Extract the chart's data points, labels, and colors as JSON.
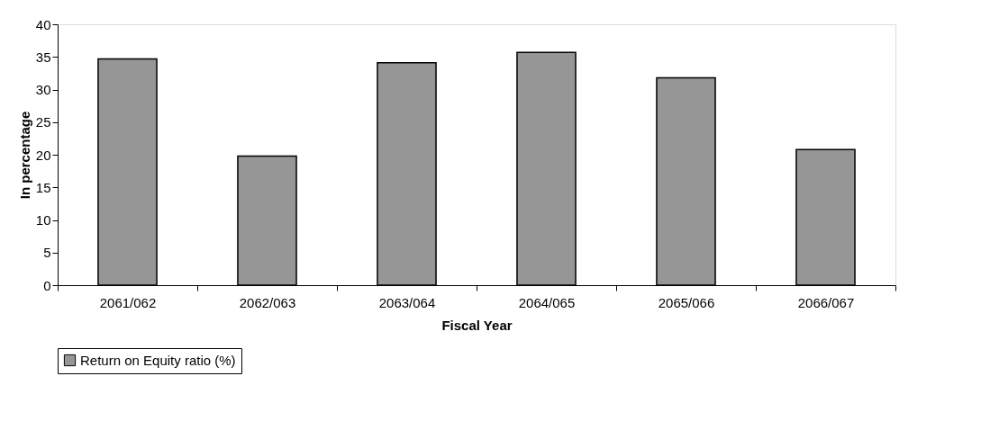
{
  "chart_data": {
    "type": "bar",
    "xlabel": "Fiscal Year",
    "ylabel": "In percentage",
    "categories": [
      "2061/062",
      "2062/063",
      "2063/064",
      "2064/065",
      "2065/066",
      "2066/067"
    ],
    "series": [
      {
        "name": "Return on Equity ratio (%)",
        "color": "#969696",
        "values": [
          34.7,
          19.8,
          34.1,
          35.7,
          31.8,
          20.8
        ]
      }
    ],
    "ylim": [
      0,
      40
    ],
    "yticks": [
      0,
      5,
      10,
      15,
      20,
      25,
      30,
      35,
      40
    ],
    "grid": false,
    "legend": "bottom"
  }
}
